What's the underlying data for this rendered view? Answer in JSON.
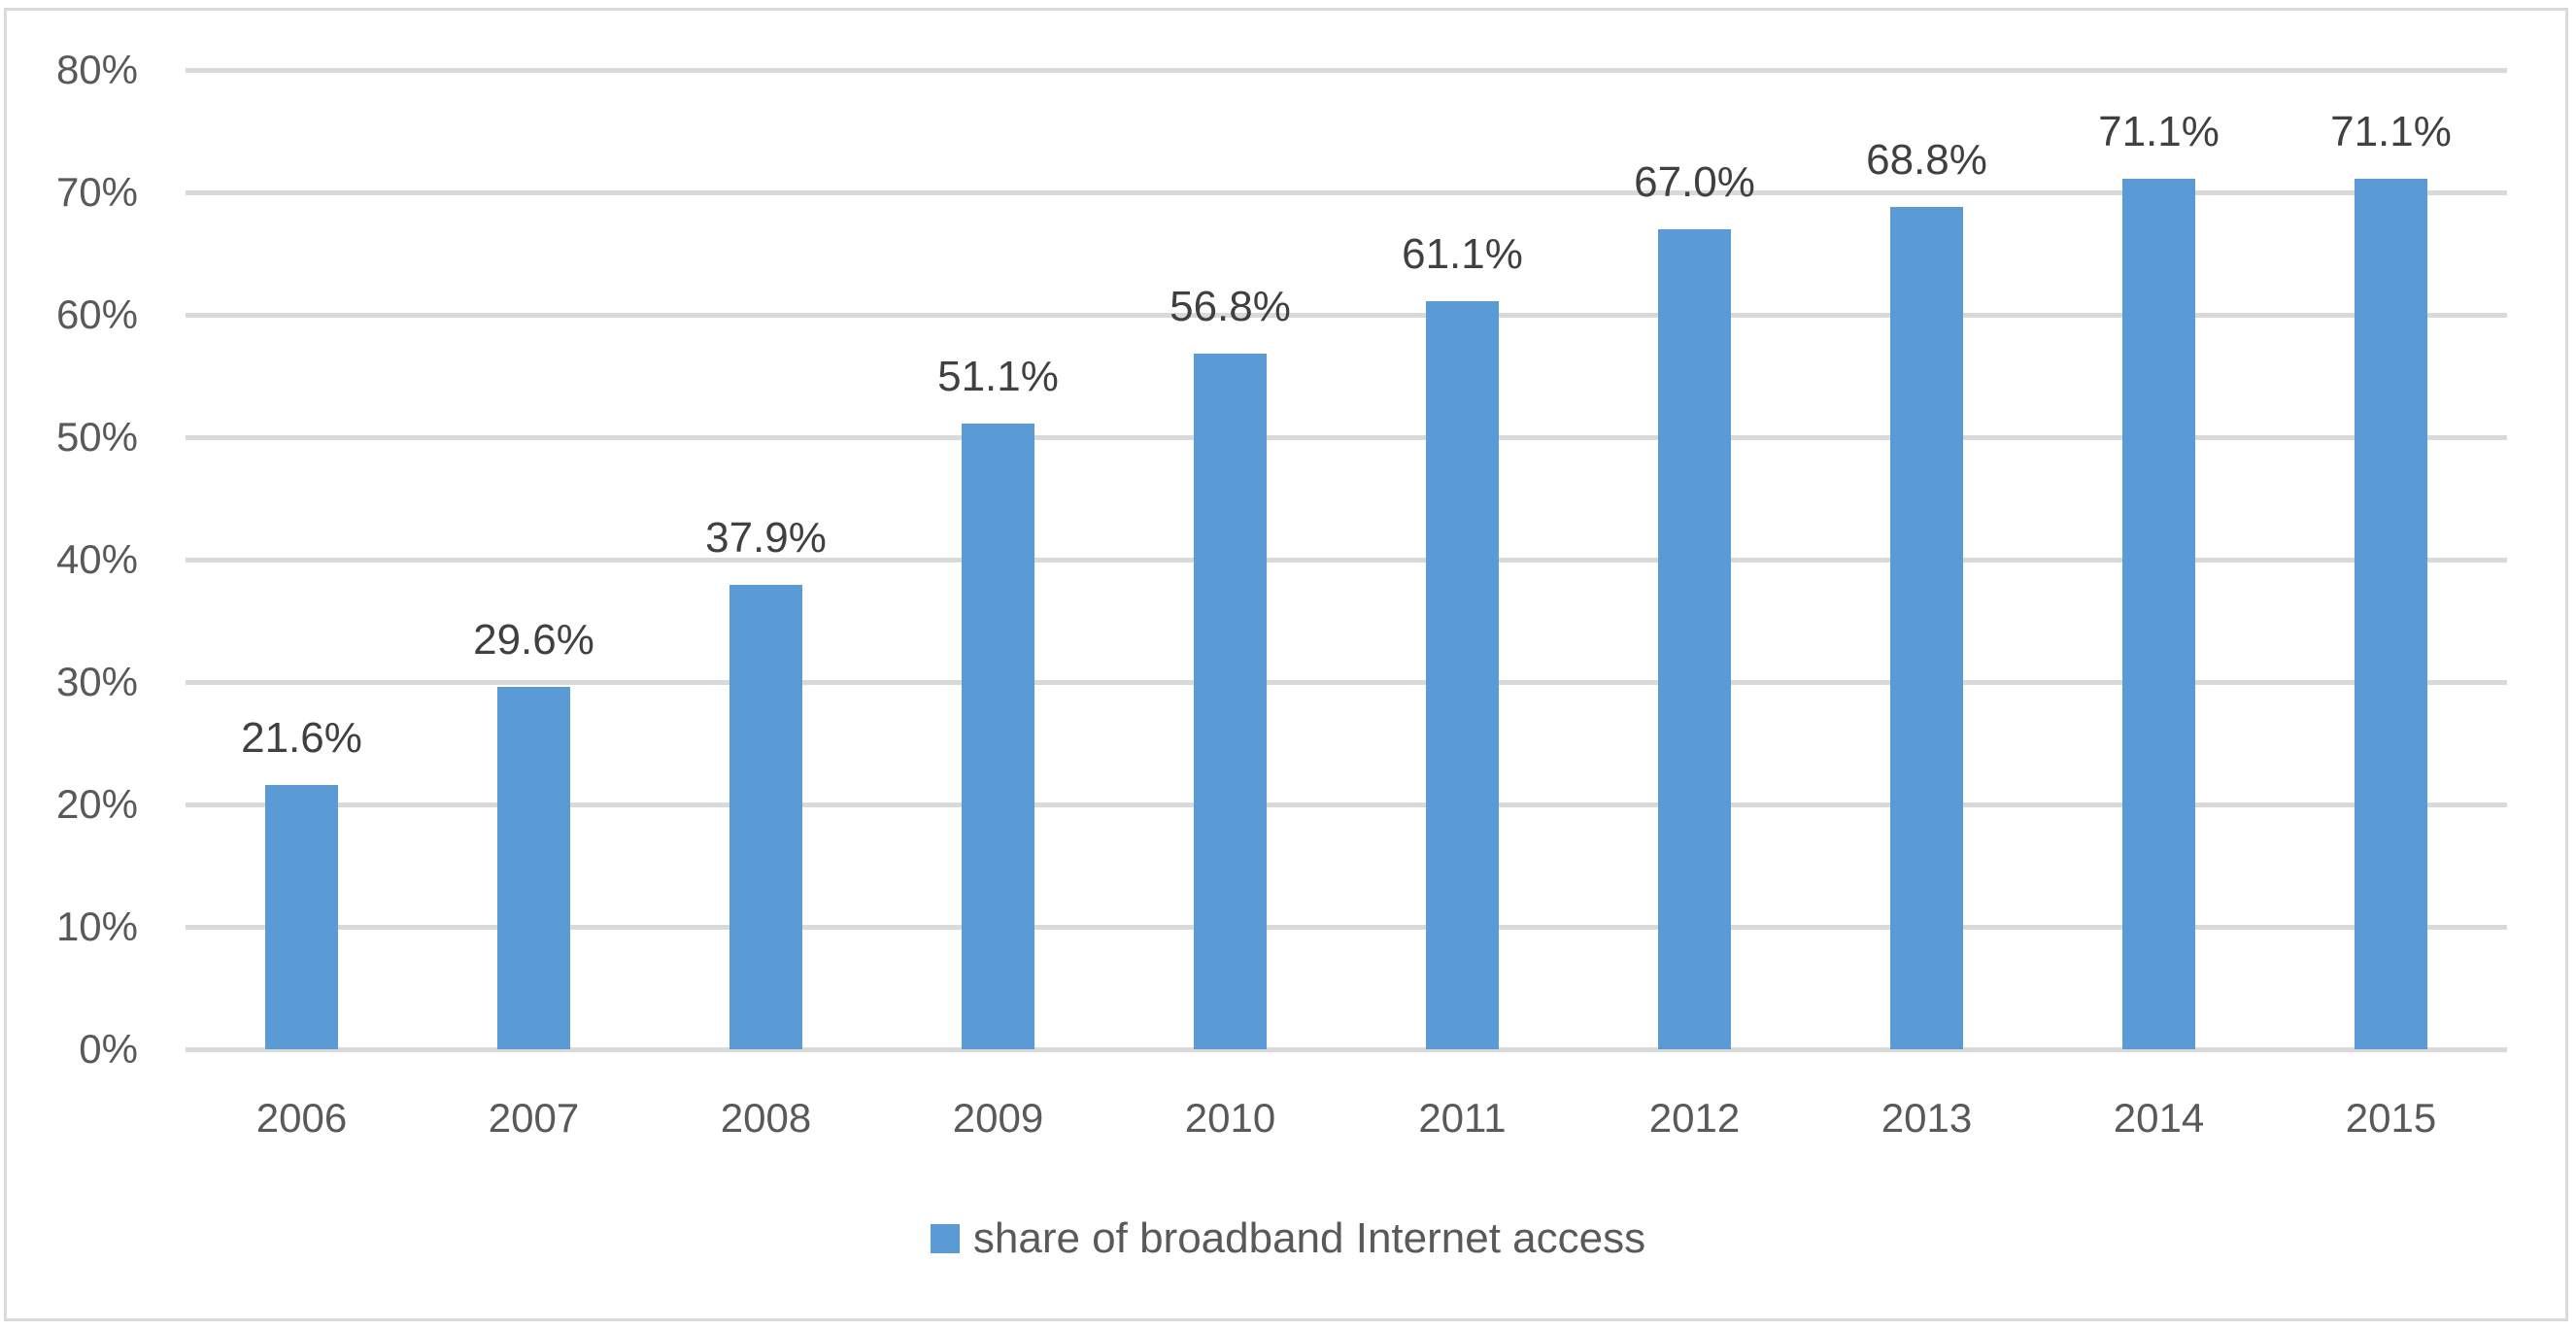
{
  "chart_data": {
    "type": "bar",
    "title": "",
    "xlabel": "",
    "ylabel": "",
    "categories": [
      "2006",
      "2007",
      "2008",
      "2009",
      "2010",
      "2011",
      "2012",
      "2013",
      "2014",
      "2015"
    ],
    "series": [
      {
        "name": "share of broadband Internet access",
        "color": "#5b9bd5",
        "values": [
          21.6,
          29.6,
          37.9,
          51.1,
          56.8,
          61.1,
          67.0,
          68.8,
          71.1,
          71.1
        ],
        "labels": [
          "21.6%",
          "29.6%",
          "37.9%",
          "51.1%",
          "56.8%",
          "61.1%",
          "67.0%",
          "68.8%",
          "71.1%",
          "71.1%"
        ]
      }
    ],
    "ylim": [
      0,
      80
    ],
    "yticks": [
      "0%",
      "10%",
      "20%",
      "30%",
      "40%",
      "50%",
      "60%",
      "70%",
      "80%"
    ],
    "grid": true,
    "legend_position": "bottom"
  },
  "legend": {
    "label": "share of broadband Internet access"
  }
}
